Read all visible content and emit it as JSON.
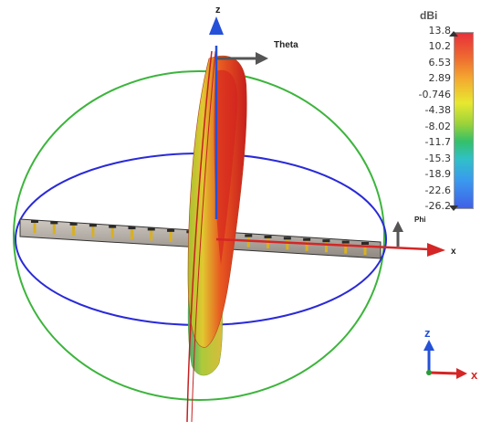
{
  "axes": {
    "z": "z",
    "x": "x",
    "theta": "Theta",
    "phi": "Phi"
  },
  "colorbar": {
    "title": "dBi",
    "ticks": [
      "13.8",
      "10.2",
      "6.53",
      "2.89",
      "-0.746",
      "-4.38",
      "-8.02",
      "-11.7",
      "-15.3",
      "-18.9",
      "-22.6",
      "-26.2"
    ]
  },
  "orientation_widget": {
    "z": "z",
    "x": "x"
  },
  "colors": {
    "x_axis": "#d42626",
    "z_axis": "#2550d8",
    "phi_ring": "#2a2ad8",
    "theta_ring": "#3cb43c"
  }
}
